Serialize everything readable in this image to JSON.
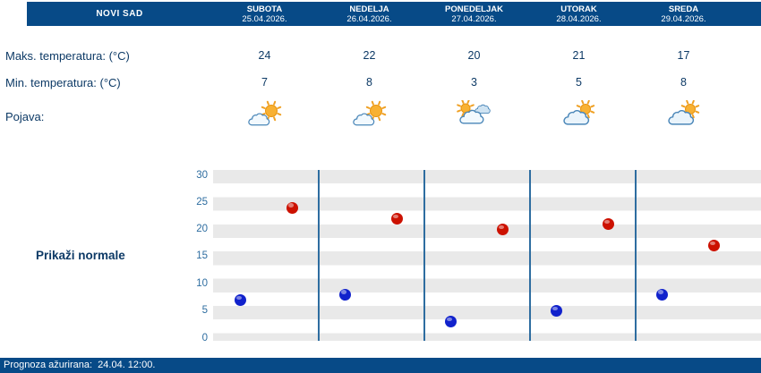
{
  "colors": {
    "header_bg": "#074a87",
    "text_blue": "#0d3a66",
    "tick_blue": "#2e6da0",
    "separator": "#2e6da0",
    "stripe": "#e9e9e9"
  },
  "header": {
    "location": "NOVI SAD",
    "days": [
      {
        "name": "SUBOTA",
        "date": "25.04.2026."
      },
      {
        "name": "NEDELJA",
        "date": "26.04.2026."
      },
      {
        "name": "PONEDELJAK",
        "date": "27.04.2026."
      },
      {
        "name": "UTORAK",
        "date": "28.04.2026."
      },
      {
        "name": "SREDA",
        "date": "29.04.2026."
      }
    ]
  },
  "labels": {
    "max_temp": "Maks. temperatura: (°C)",
    "min_temp": "Min. temperatura: (°C)",
    "phenomenon": "Pojava:",
    "show_normals": "Prikaži normale"
  },
  "forecast": {
    "max": [
      24,
      22,
      20,
      21,
      17
    ],
    "min": [
      7,
      8,
      3,
      5,
      8
    ],
    "icons": [
      "sun-behind-small-cloud",
      "sun-behind-small-cloud",
      "clouds-with-sun",
      "cloud-with-sun-behind",
      "cloud-with-sun-behind"
    ]
  },
  "chart_data": {
    "type": "scatter",
    "categories": [
      "SUBOTA 25.04.2026.",
      "NEDELJA 26.04.2026.",
      "PONEDELJAK 27.04.2026.",
      "UTORAK 28.04.2026.",
      "SREDA 29.04.2026."
    ],
    "series": [
      {
        "name": "Maks. temperatura (°C)",
        "color": "#cc1100",
        "values": [
          24,
          22,
          20,
          21,
          17
        ]
      },
      {
        "name": "Min. temperatura (°C)",
        "color": "#1122cc",
        "values": [
          7,
          8,
          3,
          5,
          8
        ]
      }
    ],
    "ylim": [
      0,
      30
    ],
    "yticks": [
      0,
      5,
      10,
      15,
      20,
      25,
      30
    ],
    "grid": "horizontal-stripes",
    "legend": "none"
  },
  "footer": {
    "updated": "Prognoza ažurirana:  24.04. 12:00."
  }
}
